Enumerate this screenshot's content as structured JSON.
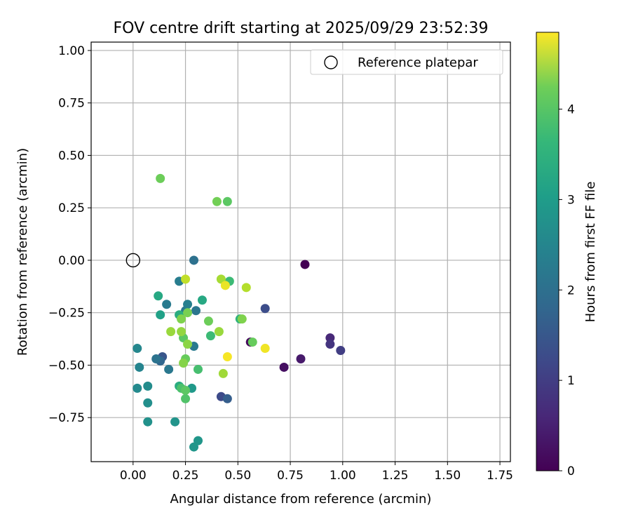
{
  "chart_data": {
    "type": "scatter",
    "title": "FOV centre drift starting at 2025/09/29 23:52:39",
    "xlabel": "Angular distance from reference (arcmin)",
    "ylabel": "Rotation from reference (arcmin)",
    "xlim": [
      -0.2,
      1.8
    ],
    "ylim": [
      -0.96,
      1.04
    ],
    "xticks": [
      0.0,
      0.25,
      0.5,
      0.75,
      1.0,
      1.25,
      1.5,
      1.75
    ],
    "xtick_labels": [
      "0.00",
      "0.25",
      "0.50",
      "0.75",
      "1.00",
      "1.25",
      "1.50",
      "1.75"
    ],
    "yticks": [
      1.0,
      0.75,
      0.5,
      0.25,
      0.0,
      -0.25,
      -0.5,
      -0.75
    ],
    "ytick_labels": [
      "1.00",
      "0.75",
      "0.50",
      "0.25",
      "0.00",
      "−0.25",
      "−0.50",
      "−0.75"
    ],
    "grid": true,
    "legend": {
      "label": "Reference platepar",
      "position": "top-right"
    },
    "reference_point": {
      "x": 0.0,
      "y": 0.0
    },
    "colorbar": {
      "label": "Hours from first FF file",
      "colormap": "viridis",
      "range": [
        0,
        4.85
      ],
      "ticks": [
        0,
        1,
        2,
        3,
        4
      ],
      "tick_labels": [
        "0",
        "1",
        "2",
        "3",
        "4"
      ]
    },
    "points": [
      {
        "x": 0.82,
        "y": -0.02,
        "t": 0.0
      },
      {
        "x": 0.56,
        "y": -0.39,
        "t": 0.1
      },
      {
        "x": 0.72,
        "y": -0.51,
        "t": 0.2
      },
      {
        "x": 0.8,
        "y": -0.47,
        "t": 0.35
      },
      {
        "x": 0.94,
        "y": -0.37,
        "t": 0.55
      },
      {
        "x": 0.94,
        "y": -0.4,
        "t": 0.75
      },
      {
        "x": 0.99,
        "y": -0.43,
        "t": 0.9
      },
      {
        "x": 0.42,
        "y": -0.65,
        "t": 1.1
      },
      {
        "x": 0.63,
        "y": -0.23,
        "t": 1.15
      },
      {
        "x": 0.45,
        "y": -0.66,
        "t": 1.45
      },
      {
        "x": 0.14,
        "y": -0.46,
        "t": 1.3
      },
      {
        "x": 0.13,
        "y": -0.48,
        "t": 1.6
      },
      {
        "x": 0.11,
        "y": -0.47,
        "t": 1.85
      },
      {
        "x": 0.17,
        "y": -0.52,
        "t": 1.95
      },
      {
        "x": 0.16,
        "y": -0.21,
        "t": 2.0
      },
      {
        "x": 0.29,
        "y": 0.0,
        "t": 1.8
      },
      {
        "x": 0.3,
        "y": -0.24,
        "t": 1.9
      },
      {
        "x": 0.25,
        "y": -0.24,
        "t": 1.95
      },
      {
        "x": 0.29,
        "y": -0.41,
        "t": 2.0
      },
      {
        "x": 0.22,
        "y": -0.1,
        "t": 2.05
      },
      {
        "x": 0.26,
        "y": -0.21,
        "t": 2.1
      },
      {
        "x": 0.03,
        "y": -0.51,
        "t": 2.2
      },
      {
        "x": 0.02,
        "y": -0.42,
        "t": 2.25
      },
      {
        "x": 0.02,
        "y": -0.61,
        "t": 2.3
      },
      {
        "x": 0.07,
        "y": -0.6,
        "t": 2.35
      },
      {
        "x": 0.07,
        "y": -0.68,
        "t": 2.4
      },
      {
        "x": 0.07,
        "y": -0.77,
        "t": 2.45
      },
      {
        "x": 0.2,
        "y": -0.77,
        "t": 2.5
      },
      {
        "x": 0.29,
        "y": -0.89,
        "t": 2.55
      },
      {
        "x": 0.31,
        "y": -0.86,
        "t": 2.55
      },
      {
        "x": 0.28,
        "y": -0.61,
        "t": 2.6
      },
      {
        "x": 0.13,
        "y": -0.26,
        "t": 2.75
      },
      {
        "x": 0.12,
        "y": -0.17,
        "t": 2.9
      },
      {
        "x": 0.33,
        "y": -0.19,
        "t": 2.9
      },
      {
        "x": 0.22,
        "y": -0.6,
        "t": 3.0
      },
      {
        "x": 0.22,
        "y": -0.26,
        "t": 3.0
      },
      {
        "x": 0.51,
        "y": -0.28,
        "t": 3.1
      },
      {
        "x": 0.46,
        "y": -0.1,
        "t": 3.3
      },
      {
        "x": 0.37,
        "y": -0.36,
        "t": 3.3
      },
      {
        "x": 0.31,
        "y": -0.52,
        "t": 3.4
      },
      {
        "x": 0.23,
        "y": -0.61,
        "t": 3.45
      },
      {
        "x": 0.25,
        "y": -0.66,
        "t": 3.5
      },
      {
        "x": 0.25,
        "y": -0.62,
        "t": 3.6
      },
      {
        "x": 0.24,
        "y": -0.37,
        "t": 3.6
      },
      {
        "x": 0.25,
        "y": -0.47,
        "t": 3.7
      },
      {
        "x": 0.36,
        "y": -0.29,
        "t": 3.75
      },
      {
        "x": 0.26,
        "y": -0.25,
        "t": 3.85
      },
      {
        "x": 0.23,
        "y": -0.28,
        "t": 3.9
      },
      {
        "x": 0.24,
        "y": -0.49,
        "t": 3.95
      },
      {
        "x": 0.57,
        "y": -0.39,
        "t": 3.7
      },
      {
        "x": 0.52,
        "y": -0.28,
        "t": 3.9
      },
      {
        "x": 0.13,
        "y": 0.39,
        "t": 3.75
      },
      {
        "x": 0.45,
        "y": 0.28,
        "t": 3.6
      },
      {
        "x": 0.4,
        "y": 0.28,
        "t": 3.8
      },
      {
        "x": 0.26,
        "y": -0.4,
        "t": 4.0
      },
      {
        "x": 0.18,
        "y": -0.34,
        "t": 4.1
      },
      {
        "x": 0.23,
        "y": -0.34,
        "t": 4.05
      },
      {
        "x": 0.41,
        "y": -0.34,
        "t": 4.1
      },
      {
        "x": 0.43,
        "y": -0.54,
        "t": 4.15
      },
      {
        "x": 0.42,
        "y": -0.09,
        "t": 4.2
      },
      {
        "x": 0.54,
        "y": -0.13,
        "t": 4.3
      },
      {
        "x": 0.25,
        "y": -0.09,
        "t": 4.4
      },
      {
        "x": 0.44,
        "y": -0.12,
        "t": 4.7
      },
      {
        "x": 0.45,
        "y": -0.46,
        "t": 4.8
      },
      {
        "x": 0.63,
        "y": -0.42,
        "t": 4.75
      }
    ]
  }
}
